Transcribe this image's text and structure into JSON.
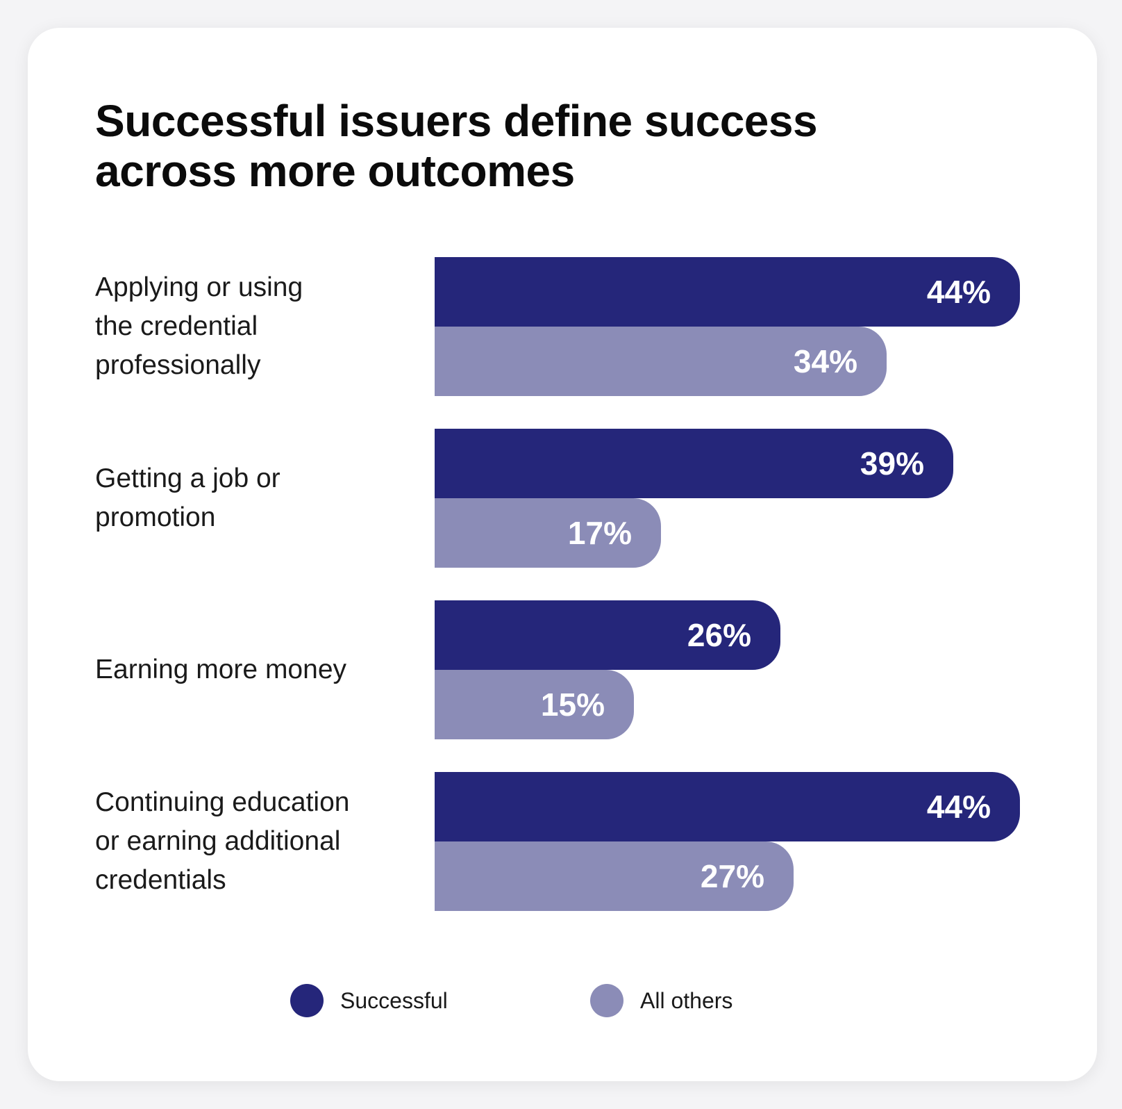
{
  "colors": {
    "successful": "#25267a",
    "all_others": "#8b8cb7"
  },
  "chart_data": {
    "type": "bar",
    "orientation": "horizontal",
    "title": "Successful issuers define success across more outcomes",
    "categories": [
      "Applying or using the credential professionally",
      "Getting a job or promotion",
      "Earning more money",
      "Continuing education or earning additional credentials"
    ],
    "category_lines": [
      [
        "Applying or using",
        "the credential",
        "professionally"
      ],
      [
        "Getting a job or",
        "promotion"
      ],
      [
        "Earning more money"
      ],
      [
        "Continuing education",
        "or earning additional",
        "credentials"
      ]
    ],
    "series": [
      {
        "name": "Successful",
        "values": [
          44,
          39,
          26,
          44
        ],
        "labels": [
          "44%",
          "39%",
          "26%",
          "44%"
        ]
      },
      {
        "name": "All others",
        "values": [
          34,
          17,
          15,
          27
        ],
        "labels": [
          "34%",
          "17%",
          "15%",
          "27%"
        ]
      }
    ],
    "xlim": [
      0,
      44
    ],
    "legend_position": "bottom",
    "grid": false
  }
}
